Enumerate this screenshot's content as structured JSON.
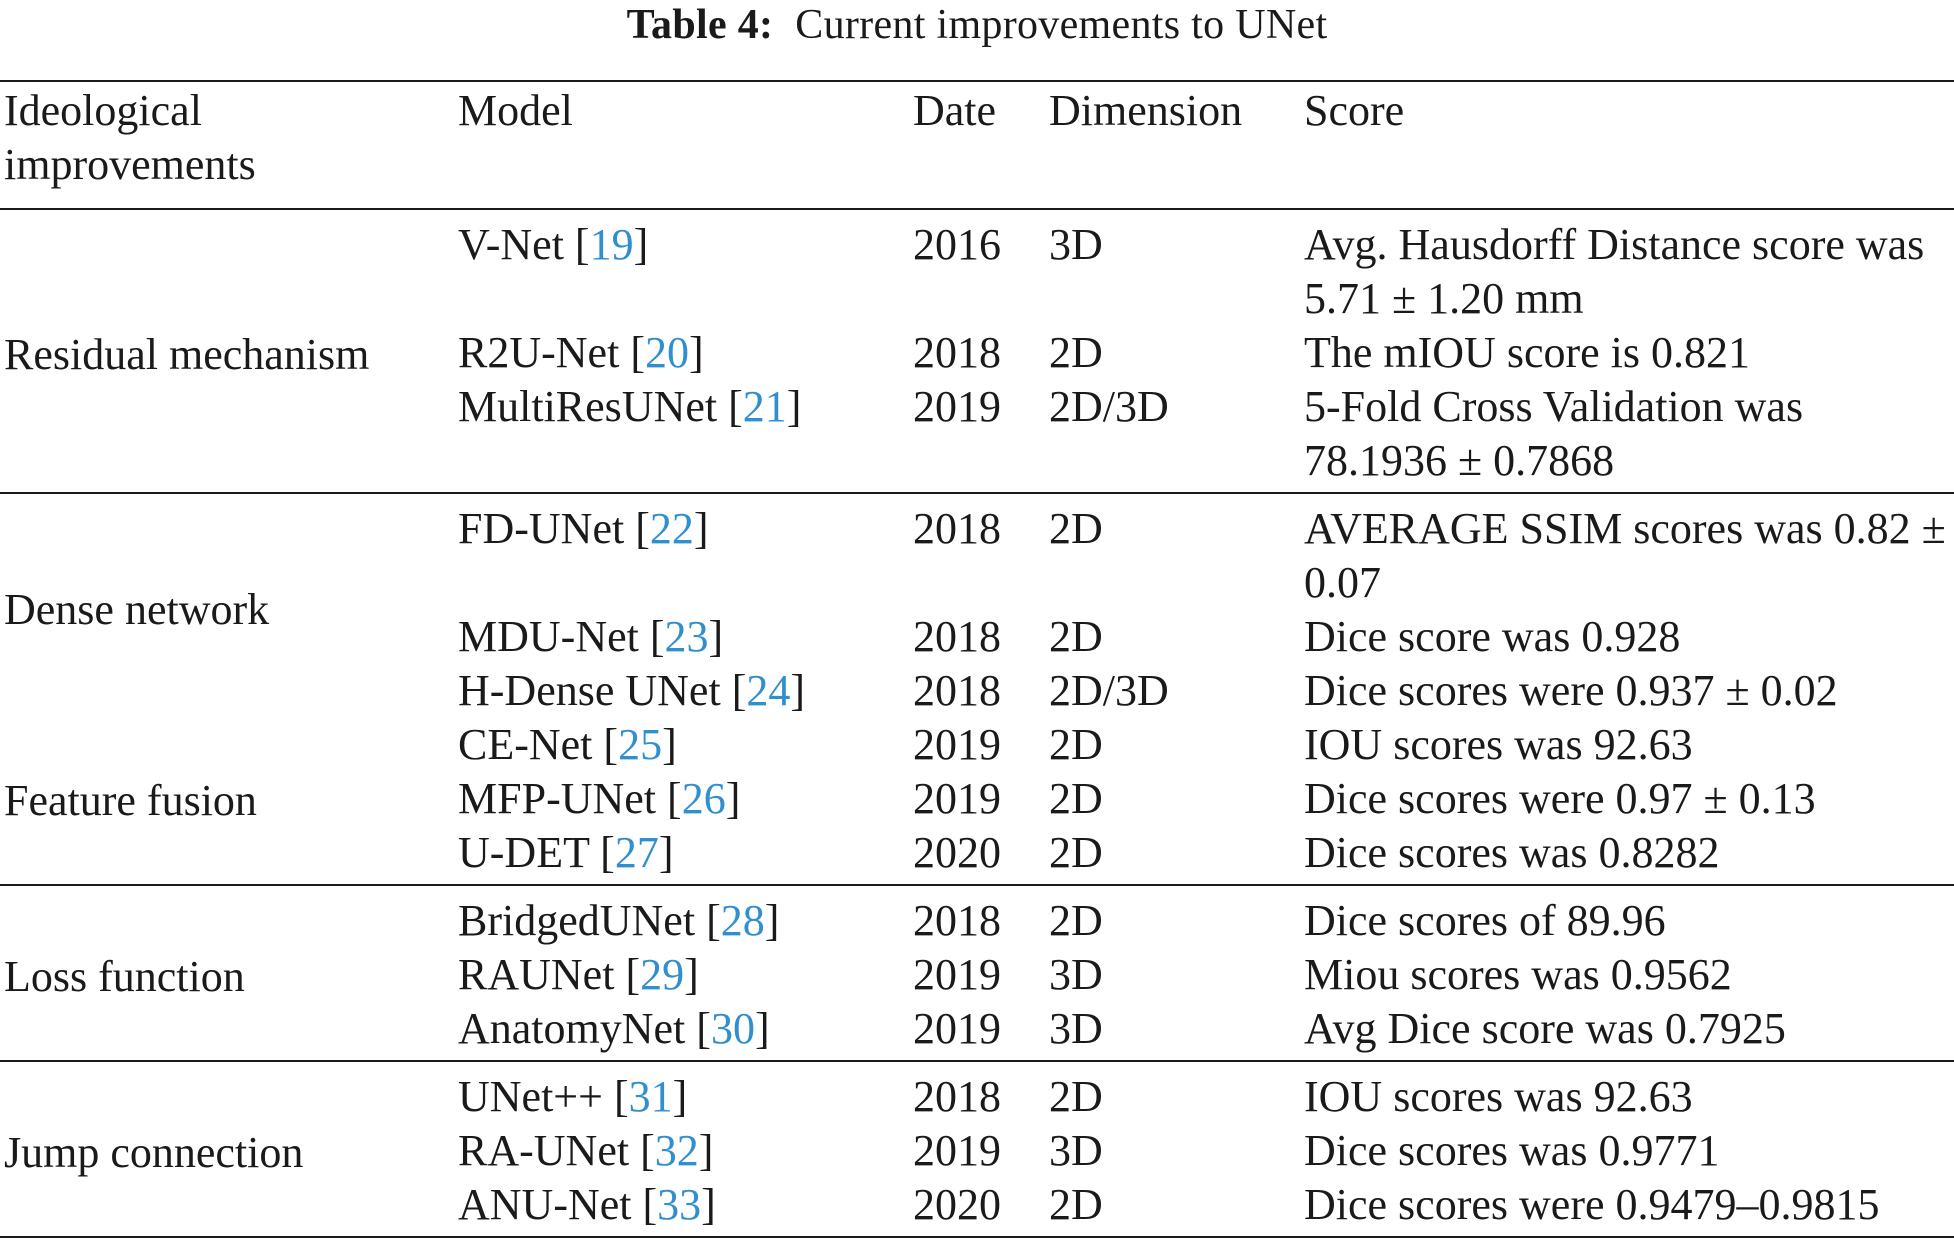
{
  "caption": {
    "label": "Table 4:",
    "title": "Current improvements to UNet"
  },
  "header": {
    "col1": "Ideological improvements",
    "col2": "Model",
    "col3": "Date",
    "col4": "Dimension",
    "col5": "Score"
  },
  "groups": [
    {
      "name": "Residual mechanism",
      "rows": [
        {
          "model": "V-Net",
          "ref": "19",
          "date": "2016",
          "dim": "3D",
          "score": "Avg. Hausdorff Distance score was 5.71 ± 1.20 mm"
        },
        {
          "model": "R2U-Net",
          "ref": "20",
          "date": "2018",
          "dim": "2D",
          "score": "The mIOU score is 0.821"
        },
        {
          "model": "MultiResUNet",
          "ref": "21",
          "date": "2019",
          "dim": "2D/3D",
          "score": "5-Fold Cross Validation was 78.1936 ± 0.7868"
        }
      ]
    },
    {
      "name": "Dense network",
      "name2": "Feature fusion",
      "rows": [
        {
          "model": "FD-UNet",
          "ref": "22",
          "date": "2018",
          "dim": "2D",
          "score": "AVERAGE SSIM scores was 0.82 ± 0.07"
        },
        {
          "model": "MDU-Net",
          "ref": "23",
          "date": "2018",
          "dim": "2D",
          "score": "Dice score was 0.928"
        },
        {
          "model": "H-Dense UNet",
          "ref": "24",
          "date": "2018",
          "dim": "2D/3D",
          "score": "Dice scores were 0.937 ± 0.02"
        },
        {
          "model": "CE-Net",
          "ref": "25",
          "date": "2019",
          "dim": "2D",
          "score": "IOU scores was 92.63"
        },
        {
          "model": "MFP-UNet",
          "ref": "26",
          "date": "2019",
          "dim": "2D",
          "score": "Dice scores were 0.97 ± 0.13"
        },
        {
          "model": "U-DET",
          "ref": "27",
          "date": "2020",
          "dim": "2D",
          "score": "Dice scores was 0.8282"
        }
      ]
    },
    {
      "name": "Loss function",
      "rows": [
        {
          "model": "BridgedUNet",
          "ref": "28",
          "date": "2018",
          "dim": "2D",
          "score": "Dice scores of 89.96"
        },
        {
          "model": "RAUNet",
          "ref": "29",
          "date": "2019",
          "dim": "3D",
          "score": "Miou scores was 0.9562"
        },
        {
          "model": "AnatomyNet",
          "ref": "30",
          "date": "2019",
          "dim": "3D",
          "score": "Avg Dice score was 0.7925"
        }
      ]
    },
    {
      "name": "Jump connection",
      "rows": [
        {
          "model": "UNet++",
          "ref": "31",
          "date": "2018",
          "dim": "2D",
          "score": "IOU scores was 92.63"
        },
        {
          "model": "RA-UNet",
          "ref": "32",
          "date": "2019",
          "dim": "3D",
          "score": "Dice scores was 0.9771"
        },
        {
          "model": "ANU-Net",
          "ref": "33",
          "date": "2020",
          "dim": "2D",
          "score": "Dice scores were 0.9479–0.9815"
        }
      ]
    }
  ],
  "colors": {
    "text": "#1a1a1a",
    "reference_link": "#2f8fcf",
    "background": "#ffffff"
  }
}
